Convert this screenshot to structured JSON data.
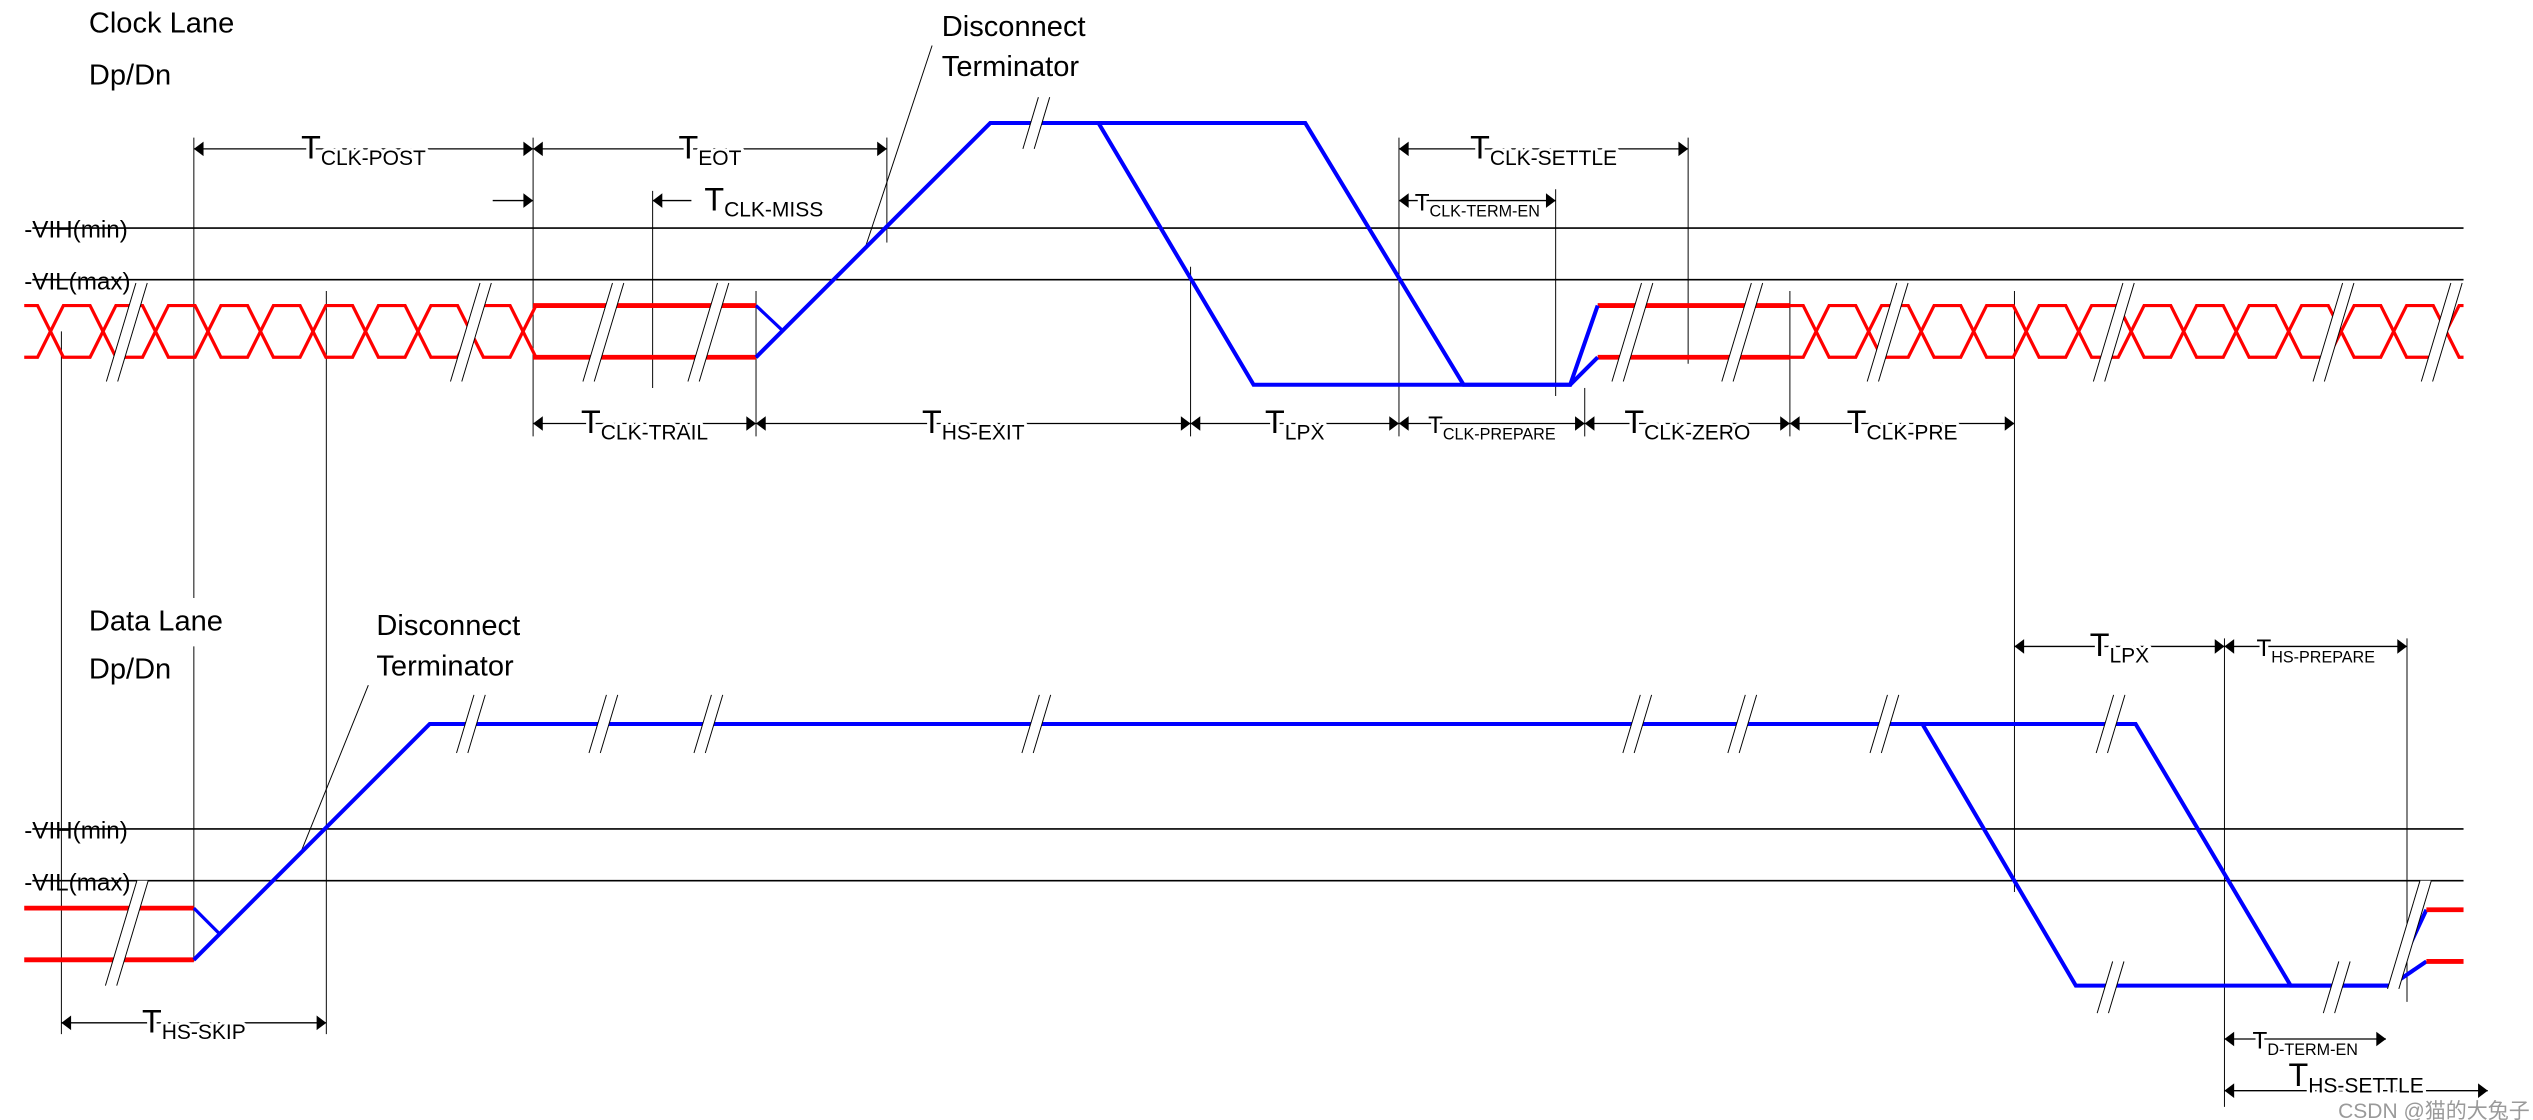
{
  "colors": {
    "hs_signal": "#ff0000",
    "lp_signal": "#0000ff",
    "lines": "#000000"
  },
  "clock_lane": {
    "title": "Clock Lane",
    "subtitle": "Dp/Dn",
    "vih": "VIH(min)",
    "vil": "VIL(max)",
    "annotation": {
      "line1": "Disconnect",
      "line2": "Terminator"
    },
    "timings": [
      {
        "main": "T",
        "sub": "CLK-POST"
      },
      {
        "main": "T",
        "sub": "EOT"
      },
      {
        "main": "T",
        "sub": "CLK-MISS"
      },
      {
        "main": "T",
        "sub": "CLK-SETTLE"
      },
      {
        "main": "T",
        "sub": "CLK-TERM-EN"
      },
      {
        "main": "T",
        "sub": "CLK-TRAIL"
      },
      {
        "main": "T",
        "sub": "HS-EXIT"
      },
      {
        "main": "T",
        "sub": "LPX"
      },
      {
        "main": "T",
        "sub": "CLK-PREPARE"
      },
      {
        "main": "T",
        "sub": "CLK-ZERO"
      },
      {
        "main": "T",
        "sub": "CLK-PRE"
      }
    ]
  },
  "data_lane": {
    "title": "Data Lane",
    "subtitle": "Dp/Dn",
    "vih": "VIH(min)",
    "vil": "VIL(max)",
    "annotation": {
      "line1": "Disconnect",
      "line2": "Terminator"
    },
    "timings": [
      {
        "main": "T",
        "sub": "HS-SKIP"
      },
      {
        "main": "T",
        "sub": "LPX"
      },
      {
        "main": "T",
        "sub": "HS-PREPARE"
      },
      {
        "main": "T",
        "sub": "D-TERM-EN"
      },
      {
        "main": "T",
        "sub": "HS-SETTLE"
      }
    ]
  },
  "watermark": "CSDN @猫的大兔子"
}
